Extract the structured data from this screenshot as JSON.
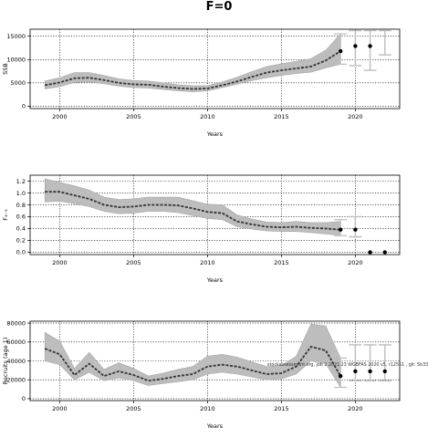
{
  "figure": {
    "title": "F=0",
    "colors": {
      "band": "#bdbdbd",
      "band_edge": "#a6a6a6",
      "median": "#333333",
      "points": "#000000",
      "future_interval": "#bdbdbd",
      "grid": "#000000"
    }
  },
  "chart_data": [
    {
      "type": "line",
      "id": "ssb",
      "title": "",
      "xlabel": "Years",
      "ylabel": "SSB",
      "xlim": [
        1998,
        2023
      ],
      "ylim": [
        -500,
        16500
      ],
      "x_ticks": [
        2000,
        2005,
        2010,
        2015,
        2020
      ],
      "x_tick_labels": [
        "2000",
        "2005",
        "2010",
        "2015",
        "2020"
      ],
      "y_ticks": [
        0,
        5000,
        10000,
        15000
      ],
      "y_tick_labels": [
        "0",
        "5000",
        "10000",
        "15000"
      ],
      "grid": true,
      "series": [
        {
          "role": "median",
          "x": [
            1999,
            2000,
            2001,
            2002,
            2003,
            2004,
            2005,
            2006,
            2007,
            2008,
            2009,
            2010,
            2011,
            2012,
            2013,
            2014,
            2015,
            2016,
            2017,
            2018,
            2019
          ],
          "values": [
            4500,
            5100,
            6000,
            6100,
            5600,
            5000,
            4700,
            4600,
            4200,
            3900,
            3700,
            3800,
            4500,
            5300,
            6300,
            7200,
            7700,
            8100,
            8500,
            9800,
            11800
          ]
        },
        {
          "role": "lower",
          "x": [
            1999,
            2000,
            2001,
            2002,
            2003,
            2004,
            2005,
            2006,
            2007,
            2008,
            2009,
            2010,
            2011,
            2012,
            2013,
            2014,
            2015,
            2016,
            2017,
            2018,
            2019
          ],
          "values": [
            3700,
            4200,
            5100,
            5200,
            4800,
            4300,
            4000,
            3900,
            3600,
            3300,
            3100,
            3300,
            4000,
            4700,
            5500,
            6100,
            6600,
            7000,
            7300,
            8200,
            9000
          ]
        },
        {
          "role": "upper",
          "x": [
            1999,
            2000,
            2001,
            2002,
            2003,
            2004,
            2005,
            2006,
            2007,
            2008,
            2009,
            2010,
            2011,
            2012,
            2013,
            2014,
            2015,
            2016,
            2017,
            2018,
            2019
          ],
          "values": [
            5400,
            6100,
            7200,
            7200,
            6600,
            5900,
            5500,
            5400,
            5000,
            4600,
            4400,
            4400,
            5200,
            6200,
            7400,
            8500,
            9100,
            9600,
            10200,
            12000,
            15500
          ]
        },
        {
          "role": "points",
          "x": [
            2019,
            2020,
            2021
          ],
          "values": [
            11800,
            12900,
            12900
          ]
        },
        {
          "role": "future_interval",
          "x": [
            2020,
            2021,
            2022
          ],
          "lower": [
            8700,
            7700,
            11000
          ],
          "upper": [
            16200,
            16200,
            16200
          ]
        },
        {
          "role": "past_interval",
          "x": [
            2019
          ],
          "lower": [
            9000
          ],
          "upper": [
            15500
          ]
        }
      ]
    },
    {
      "type": "line",
      "id": "fishing-mortality",
      "title": "",
      "xlabel": "Years",
      "ylabel": "F₃₋₅",
      "xlim": [
        1998,
        2023
      ],
      "ylim": [
        -0.04,
        1.3
      ],
      "x_ticks": [
        2000,
        2005,
        2010,
        2015,
        2020
      ],
      "x_tick_labels": [
        "2000",
        "2005",
        "2010",
        "2015",
        "2020"
      ],
      "y_ticks": [
        0.0,
        0.2,
        0.4,
        0.6,
        0.8,
        1.0,
        1.2
      ],
      "y_tick_labels": [
        "0.0",
        "0.2",
        "0.4",
        "0.6",
        "0.8",
        "1.0",
        "1.2"
      ],
      "grid": true,
      "series": [
        {
          "role": "median",
          "x": [
            1999,
            2000,
            2001,
            2002,
            2003,
            2004,
            2005,
            2006,
            2007,
            2008,
            2009,
            2010,
            2011,
            2012,
            2013,
            2014,
            2015,
            2016,
            2017,
            2018,
            2019
          ],
          "values": [
            1.02,
            1.02,
            0.96,
            0.9,
            0.8,
            0.76,
            0.77,
            0.8,
            0.8,
            0.79,
            0.74,
            0.68,
            0.66,
            0.52,
            0.47,
            0.43,
            0.42,
            0.43,
            0.41,
            0.4,
            0.38
          ]
        },
        {
          "role": "lower",
          "x": [
            1999,
            2000,
            2001,
            2002,
            2003,
            2004,
            2005,
            2006,
            2007,
            2008,
            2009,
            2010,
            2011,
            2012,
            2013,
            2014,
            2015,
            2016,
            2017,
            2018,
            2019
          ],
          "values": [
            0.85,
            0.86,
            0.82,
            0.77,
            0.69,
            0.65,
            0.66,
            0.69,
            0.69,
            0.67,
            0.62,
            0.57,
            0.55,
            0.43,
            0.39,
            0.36,
            0.35,
            0.35,
            0.33,
            0.31,
            0.28
          ]
        },
        {
          "role": "upper",
          "x": [
            1999,
            2000,
            2001,
            2002,
            2003,
            2004,
            2005,
            2006,
            2007,
            2008,
            2009,
            2010,
            2011,
            2012,
            2013,
            2014,
            2015,
            2016,
            2017,
            2018,
            2019
          ],
          "values": [
            1.24,
            1.18,
            1.12,
            1.05,
            0.93,
            0.89,
            0.9,
            0.93,
            0.93,
            0.93,
            0.87,
            0.81,
            0.8,
            0.63,
            0.56,
            0.51,
            0.5,
            0.52,
            0.5,
            0.5,
            0.52
          ]
        },
        {
          "role": "points",
          "x": [
            2019,
            2020,
            2021,
            2022
          ],
          "values": [
            0.38,
            0.38,
            0.0,
            0.0
          ]
        },
        {
          "role": "future_interval",
          "x": [
            2020
          ],
          "lower": [
            0.26
          ],
          "upper": [
            0.6
          ]
        },
        {
          "role": "past_interval",
          "x": [
            2019
          ],
          "lower": [
            0.28
          ],
          "upper": [
            0.55
          ]
        }
      ]
    },
    {
      "type": "line",
      "id": "recruits",
      "title": "",
      "xlabel": "Years",
      "ylabel": "Recruits (age 1)",
      "xlim": [
        1998,
        2023
      ],
      "ylim": [
        -2000,
        82000
      ],
      "x_ticks": [
        2000,
        2005,
        2010,
        2015,
        2020
      ],
      "x_tick_labels": [
        "2000",
        "2005",
        "2010",
        "2015",
        "2020"
      ],
      "y_ticks": [
        0,
        20000,
        40000,
        60000,
        80000
      ],
      "y_tick_labels": [
        "0",
        "20000",
        "40000",
        "60000",
        "80000"
      ],
      "grid": true,
      "annotation": "stockassessment.org, job 2 2021.23 WGBFAS 2020 v5, r12551 , git: 5b33",
      "series": [
        {
          "role": "median",
          "x": [
            1999,
            2000,
            2001,
            2002,
            2003,
            2004,
            2005,
            2006,
            2007,
            2008,
            2009,
            2010,
            2011,
            2012,
            2013,
            2014,
            2015,
            2016,
            2017,
            2018,
            2019
          ],
          "values": [
            53000,
            47000,
            25000,
            37000,
            24000,
            29000,
            25000,
            19000,
            21000,
            24000,
            26000,
            34000,
            36000,
            34000,
            30000,
            26000,
            27000,
            34000,
            55000,
            51000,
            24000
          ]
        },
        {
          "role": "lower",
          "x": [
            1999,
            2000,
            2001,
            2002,
            2003,
            2004,
            2005,
            2006,
            2007,
            2008,
            2009,
            2010,
            2011,
            2012,
            2013,
            2014,
            2015,
            2016,
            2017,
            2018,
            2019
          ],
          "values": [
            40000,
            36000,
            20000,
            28000,
            19000,
            22000,
            19000,
            14000,
            16000,
            18000,
            20000,
            26000,
            28000,
            26000,
            23000,
            20000,
            21000,
            26000,
            40000,
            37000,
            12000
          ]
        },
        {
          "role": "upper",
          "x": [
            1999,
            2000,
            2001,
            2002,
            2003,
            2004,
            2005,
            2006,
            2007,
            2008,
            2009,
            2010,
            2011,
            2012,
            2013,
            2014,
            2015,
            2016,
            2017,
            2018,
            2019
          ],
          "values": [
            70000,
            61000,
            32000,
            49000,
            31000,
            38000,
            32000,
            24000,
            27000,
            31000,
            34000,
            45000,
            47000,
            44000,
            39000,
            34000,
            35000,
            45000,
            79000,
            77000,
            43000
          ]
        },
        {
          "role": "points",
          "x": [
            2019,
            2020,
            2021,
            2022
          ],
          "values": [
            24000,
            29000,
            29000,
            29000
          ]
        },
        {
          "role": "future_interval",
          "x": [
            2020,
            2021,
            2022
          ],
          "lower": [
            19000,
            19000,
            19000
          ],
          "upper": [
            57000,
            57000,
            57000
          ]
        },
        {
          "role": "past_interval",
          "x": [
            2019
          ],
          "lower": [
            12000
          ],
          "upper": [
            43000
          ]
        }
      ]
    }
  ]
}
